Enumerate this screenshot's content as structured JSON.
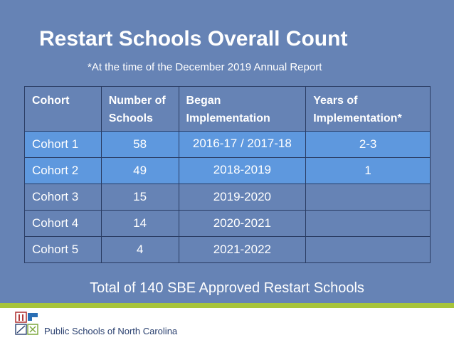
{
  "slide": {
    "title": "Restart Schools Overall Count",
    "subtitle": "*At the time of the December 2019 Annual Report",
    "total_text": "Total of 140 SBE Approved Restart Schools",
    "footer_org": "Public Schools of North Carolina"
  },
  "table": {
    "headers": {
      "cohort_line1": "Cohort",
      "schools_line1": "Number of",
      "schools_line2": "Schools",
      "began_line1": "Began",
      "began_line2": "Implementation",
      "years_line1": "Years of",
      "years_line2": "Implementation*"
    },
    "rows": [
      {
        "cohort": "Cohort 1",
        "schools": "58",
        "began": "2016-17 / 2017-18",
        "years": "2-3"
      },
      {
        "cohort": "Cohort 2",
        "schools": "49",
        "began": "2018-2019",
        "years": "1"
      },
      {
        "cohort": "Cohort 3",
        "schools": "15",
        "began": "2019-2020",
        "years": ""
      },
      {
        "cohort": "Cohort 4",
        "schools": "14",
        "began": "2020-2021",
        "years": ""
      },
      {
        "cohort": "Cohort 5",
        "schools": "4",
        "began": "2021-2022",
        "years": ""
      }
    ]
  },
  "colors": {
    "background": "#6683b5",
    "highlight_row": "#5e98de",
    "accent_bar": "#a7c43a",
    "footer_text": "#2b4170"
  },
  "icons": {
    "logo": "nc-dpi-logo-icon"
  }
}
